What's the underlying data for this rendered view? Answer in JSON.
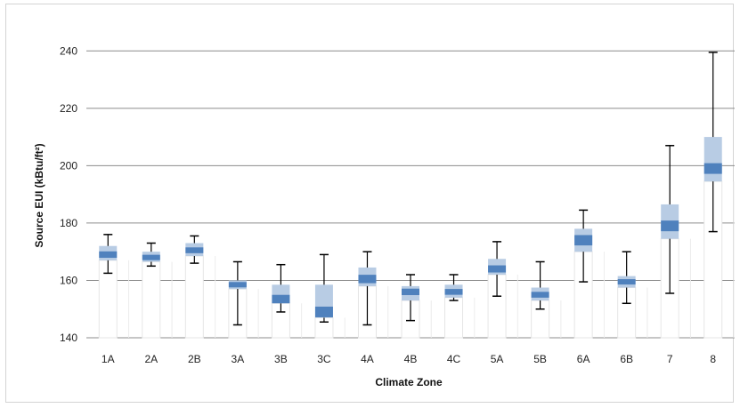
{
  "chart_data": {
    "type": "box",
    "title": "",
    "xlabel": "Climate Zone",
    "ylabel": "Source EUI (kBtu/ft²)",
    "ylim": [
      140,
      250
    ],
    "yticks": [
      140,
      160,
      180,
      200,
      220,
      240
    ],
    "grid": true,
    "legend": "none",
    "colors": {
      "iqr": "#b8cce4",
      "median": "#4f81bd",
      "whisker": "#000000",
      "grid": "#8c8c8c"
    },
    "categories": [
      "1A",
      "2A",
      "2B",
      "3A",
      "3B",
      "3C",
      "4A",
      "4B",
      "4C",
      "5A",
      "5B",
      "6A",
      "6B",
      "7",
      "8"
    ],
    "boxes": [
      {
        "min": 162.5,
        "q1": 167,
        "median": 169,
        "q3": 172,
        "max": 176
      },
      {
        "min": 165,
        "q1": 166.5,
        "median": 168,
        "q3": 170,
        "max": 173
      },
      {
        "min": 166,
        "q1": 168.5,
        "median": 170.5,
        "q3": 173,
        "max": 175.5
      },
      {
        "min": 144.5,
        "q1": 157,
        "median": 158.5,
        "q3": 160,
        "max": 166.5
      },
      {
        "min": 149,
        "q1": 152,
        "median": 153.5,
        "q3": 158.5,
        "max": 165.5
      },
      {
        "min": 145.5,
        "q1": 147,
        "median": 149,
        "q3": 158.5,
        "max": 169
      },
      {
        "min": 144.5,
        "q1": 158,
        "median": 160.5,
        "q3": 164.5,
        "max": 170
      },
      {
        "min": 146,
        "q1": 153,
        "median": 156,
        "q3": 158,
        "max": 162
      },
      {
        "min": 153,
        "q1": 154,
        "median": 156,
        "q3": 158.5,
        "max": 162
      },
      {
        "min": 154.5,
        "q1": 162,
        "median": 164,
        "q3": 167.5,
        "max": 173.5
      },
      {
        "min": 150,
        "q1": 153,
        "median": 155,
        "q3": 157.5,
        "max": 166.5
      },
      {
        "min": 159.5,
        "q1": 170,
        "median": 174,
        "q3": 178,
        "max": 184.5
      },
      {
        "min": 152,
        "q1": 157.5,
        "median": 159.5,
        "q3": 161.5,
        "max": 170
      },
      {
        "min": 155.5,
        "q1": 174.5,
        "median": 179,
        "q3": 186.5,
        "max": 207
      },
      {
        "min": 177,
        "q1": 194.5,
        "median": 199,
        "q3": 210,
        "max": 239.5
      }
    ]
  }
}
